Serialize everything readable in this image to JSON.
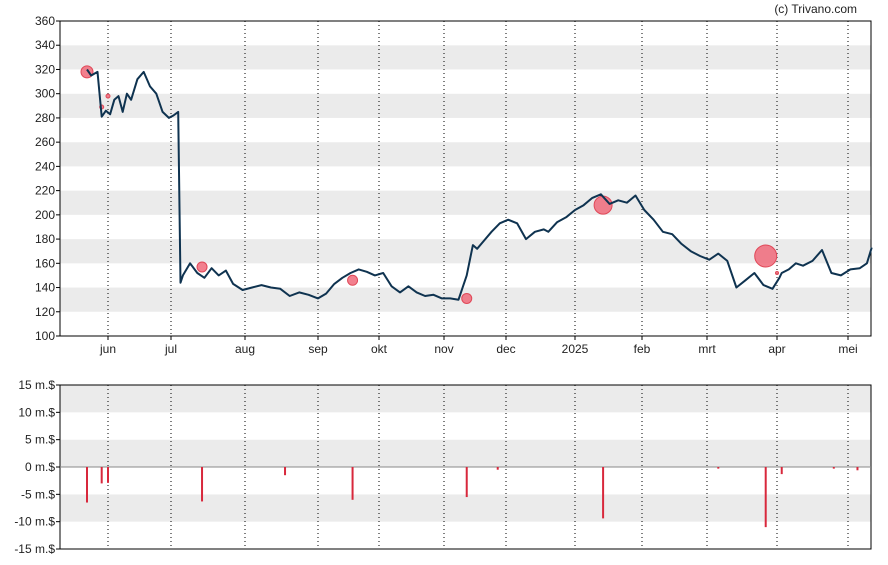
{
  "credit": "(c) Trivano.com",
  "colors": {
    "price_line": "#0f3350",
    "marker": "#f06a7a",
    "marker_stroke": "#e04858",
    "bar": "#d8283c",
    "band": "#ebebeb",
    "axis": "#000000"
  },
  "chart_data": [
    {
      "type": "line",
      "title": "",
      "ylim": [
        100,
        360
      ],
      "y_ticks": [
        "100",
        "120",
        "140",
        "160",
        "180",
        "200",
        "220",
        "240",
        "260",
        "280",
        "300",
        "320",
        "340",
        "360"
      ],
      "x_ticks": [
        "jun",
        "jul",
        "aug",
        "sep",
        "okt",
        "nov",
        "dec",
        "2025",
        "feb",
        "mrt",
        "apr",
        "mei"
      ],
      "grid": "dotted vertical at month starts, alternating horizontal bands",
      "series": [
        {
          "x": [
            "2024-05-22",
            "2024-05-24",
            "2024-05-27",
            "2024-05-29",
            "2024-05-31",
            "2024-06-02",
            "2024-06-04",
            "2024-06-06",
            "2024-06-08",
            "2024-06-10",
            "2024-06-12",
            "2024-06-15",
            "2024-06-18",
            "2024-06-21",
            "2024-06-24",
            "2024-06-27",
            "2024-06-30",
            "2024-07-02",
            "2024-07-04",
            "2024-07-05",
            "2024-07-06",
            "2024-07-09",
            "2024-07-12",
            "2024-07-15",
            "2024-07-18",
            "2024-07-21",
            "2024-07-24",
            "2024-07-27",
            "2024-07-31",
            "2024-08-04",
            "2024-08-08",
            "2024-08-12",
            "2024-08-16",
            "2024-08-20",
            "2024-08-24",
            "2024-08-28",
            "2024-09-01",
            "2024-09-05",
            "2024-09-09",
            "2024-09-13",
            "2024-09-17",
            "2024-09-21",
            "2024-09-25",
            "2024-09-29",
            "2024-10-03",
            "2024-10-07",
            "2024-10-11",
            "2024-10-15",
            "2024-10-19",
            "2024-10-23",
            "2024-10-27",
            "2024-10-31",
            "2024-11-04",
            "2024-11-08",
            "2024-11-12",
            "2024-11-15",
            "2024-11-17",
            "2024-11-20",
            "2024-11-24",
            "2024-11-28",
            "2024-12-02",
            "2024-12-06",
            "2024-12-10",
            "2024-12-14",
            "2024-12-18",
            "2024-12-20",
            "2024-12-24",
            "2024-12-28",
            "2025-01-01",
            "2025-01-05",
            "2025-01-09",
            "2025-01-13",
            "2025-01-17",
            "2025-01-21",
            "2025-01-25",
            "2025-01-29",
            "2025-02-02",
            "2025-02-06",
            "2025-02-10",
            "2025-02-14",
            "2025-02-18",
            "2025-02-22",
            "2025-02-26",
            "2025-03-02",
            "2025-03-06",
            "2025-03-10",
            "2025-03-14",
            "2025-03-18",
            "2025-03-22",
            "2025-03-26",
            "2025-03-30",
            "2025-04-02",
            "2025-04-03",
            "2025-04-06",
            "2025-04-09",
            "2025-04-12",
            "2025-04-16",
            "2025-04-20",
            "2025-04-24",
            "2025-04-28",
            "2025-05-02",
            "2025-05-06",
            "2025-05-09",
            "2025-05-11"
          ],
          "y": [
            320,
            315,
            318,
            281,
            286,
            283,
            295,
            298,
            285,
            300,
            295,
            312,
            318,
            306,
            300,
            285,
            280,
            282,
            285,
            144,
            150,
            160,
            152,
            148,
            156,
            150,
            154,
            143,
            138,
            140,
            142,
            140,
            139,
            133,
            136,
            134,
            131,
            135,
            143,
            148,
            152,
            155,
            153,
            150,
            152,
            141,
            136,
            141,
            136,
            133,
            134,
            131,
            131,
            130,
            150,
            175,
            172,
            178,
            186,
            193,
            196,
            193,
            180,
            186,
            188,
            186,
            194,
            198,
            204,
            208,
            214,
            217,
            209,
            212,
            210,
            216,
            204,
            196,
            186,
            184,
            176,
            170,
            166,
            163,
            168,
            162,
            140,
            146,
            152,
            142,
            139,
            148,
            152,
            155,
            160,
            158,
            162,
            171,
            152,
            150,
            155,
            156,
            160,
            173
          ]
        }
      ],
      "markers": [
        {
          "x": "2024-05-22",
          "y": 318,
          "size": 6
        },
        {
          "x": "2024-05-29",
          "y": 289,
          "size": 2
        },
        {
          "x": "2024-06-01",
          "y": 298,
          "size": 2
        },
        {
          "x": "2024-07-14",
          "y": 157,
          "size": 5
        },
        {
          "x": "2024-09-18",
          "y": 146,
          "size": 5
        },
        {
          "x": "2024-11-12",
          "y": 131,
          "size": 5
        },
        {
          "x": "2025-01-14",
          "y": 208,
          "size": 9
        },
        {
          "x": "2025-03-27",
          "y": 166,
          "size": 11
        },
        {
          "x": "2025-04-01",
          "y": 152,
          "size": 1
        }
      ]
    },
    {
      "type": "bar",
      "title": "",
      "ylim": [
        -15,
        15
      ],
      "y_ticks": [
        "-15 m.$",
        "-10 m.$",
        "-5 m.$",
        "0 m.$",
        "5 m.$",
        "10 m.$",
        "15 m.$"
      ],
      "ylabel": "",
      "bars": [
        {
          "x": "2024-05-22",
          "value": -6.5
        },
        {
          "x": "2024-05-29",
          "value": -3.0
        },
        {
          "x": "2024-06-01",
          "value": -2.9
        },
        {
          "x": "2024-07-14",
          "value": -6.3
        },
        {
          "x": "2024-08-18",
          "value": -1.5
        },
        {
          "x": "2024-09-18",
          "value": -6.0
        },
        {
          "x": "2024-11-12",
          "value": -5.5
        },
        {
          "x": "2024-11-27",
          "value": -0.5
        },
        {
          "x": "2025-01-14",
          "value": -9.4
        },
        {
          "x": "2025-03-06",
          "value": -0.3
        },
        {
          "x": "2025-03-27",
          "value": -11.0
        },
        {
          "x": "2025-04-03",
          "value": -1.3
        },
        {
          "x": "2025-04-25",
          "value": -0.3
        },
        {
          "x": "2025-05-05",
          "value": -0.6
        }
      ]
    }
  ]
}
